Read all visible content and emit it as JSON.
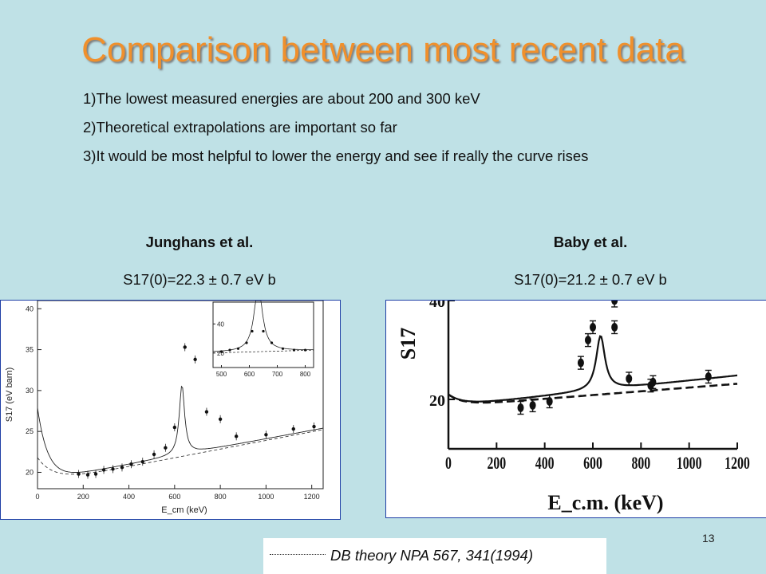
{
  "slide": {
    "title": "Comparison between most recent data",
    "bullets": [
      "1)The lowest  measured energies are about 200 and 300 keV",
      "2)Theoretical extrapolations are important  so far",
      "3)It would be most helpful to lower the energy and see if really the curve rises"
    ],
    "page_number": "13",
    "reference": "DB theory  NPA 567, 341(1994)"
  },
  "left": {
    "author": "Junghans et al.",
    "result": "S17(0)=22.3 ± 0.7 eV b"
  },
  "right": {
    "author": "Baby et al.",
    "result": "S17(0)=21.2 ± 0.7 eV b"
  },
  "chart_data": [
    {
      "type": "scatter",
      "title": "",
      "xlabel": "E_cm (keV)",
      "ylabel": "S17 (eV barn)",
      "xlim": [
        0,
        1250
      ],
      "ylim": [
        18,
        41
      ],
      "x_ticks": [
        "0",
        "200",
        "400",
        "600",
        "800",
        "1000",
        "1200"
      ],
      "y_ticks": [
        "20",
        "25",
        "30",
        "35",
        "40"
      ],
      "series": [
        {
          "x": [
            180,
            220,
            255,
            290,
            330,
            370,
            410,
            460,
            510,
            560,
            600,
            645,
            690,
            740,
            800,
            870,
            1000,
            1120,
            1210
          ],
          "y": [
            19.8,
            19.7,
            19.8,
            20.3,
            20.4,
            20.6,
            21.0,
            21.3,
            22.2,
            23.0,
            25.5,
            35.3,
            33.8,
            27.4,
            26.5,
            24.4,
            24.6,
            25.3,
            25.6
          ]
        }
      ],
      "inset": {
        "x_ticks": [
          "500",
          "600",
          "700",
          "800"
        ],
        "y_ticks": [
          "20",
          "40"
        ]
      }
    },
    {
      "type": "scatter",
      "title": "",
      "xlabel": "E_c.m. (keV)",
      "ylabel": "S17",
      "xlim": [
        0,
        1200
      ],
      "ylim": [
        10,
        40
      ],
      "x_ticks": [
        "0",
        "200",
        "400",
        "600",
        "800",
        "1000",
        "1200"
      ],
      "y_ticks": [
        "20",
        "40"
      ],
      "series": [
        {
          "x": [
            300,
            350,
            420,
            550,
            580,
            600,
            690,
            690,
            750,
            840,
            850,
            1080
          ],
          "y": [
            18.3,
            18.8,
            19.6,
            27.4,
            32.0,
            34.6,
            40.0,
            34.6,
            24.2,
            22.8,
            23.5,
            24.6
          ]
        }
      ]
    }
  ]
}
